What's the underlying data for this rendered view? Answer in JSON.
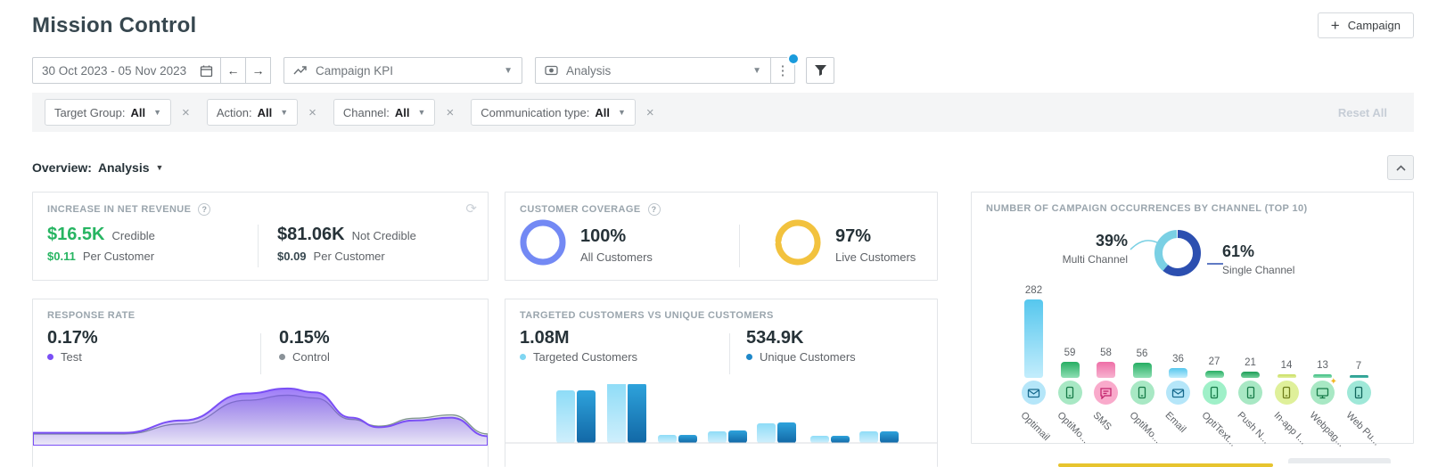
{
  "app": {
    "title": "Mission Control",
    "campaign_button": "Campaign"
  },
  "toolbar": {
    "date_range": "30 Oct 2023 - 05 Nov 2023",
    "kpi_dropdown": "Campaign KPI",
    "view_dropdown": "Analysis"
  },
  "filter_bar": {
    "chips": [
      {
        "label": "Target Group:",
        "value": "All"
      },
      {
        "label": "Action:",
        "value": "All"
      },
      {
        "label": "Channel:",
        "value": "All"
      },
      {
        "label": "Communication type:",
        "value": "All"
      }
    ],
    "reset_all": "Reset All"
  },
  "overview": {
    "label": "Overview:",
    "value": "Analysis"
  },
  "cards": {
    "net_revenue": {
      "title": "INCREASE IN NET REVENUE",
      "accent_color": "#27b562",
      "credible": {
        "amount": "$16.5K",
        "label": "Credible",
        "per_customer_amount": "$0.11",
        "per_customer_label": "Per Customer"
      },
      "not_credible": {
        "amount": "$81.06K",
        "label": "Not Credible",
        "per_customer_amount": "$0.09",
        "per_customer_label": "Per Customer"
      }
    },
    "customer_coverage": {
      "title": "CUSTOMER COVERAGE",
      "all_customers": {
        "percent": "100%",
        "value": 100,
        "label": "All Customers",
        "ring_color": "#7389f4"
      },
      "live_customers": {
        "percent": "97%",
        "value": 97,
        "label": "Live Customers",
        "ring_color": "#f2c23e"
      }
    },
    "response_rate": {
      "title": "RESPONSE RATE",
      "test": {
        "percent": "0.17%",
        "label": "Test",
        "dot_color": "#7a4ff5"
      },
      "control": {
        "percent": "0.15%",
        "label": "Control",
        "dot_color": "#8a9298"
      },
      "chart_data": {
        "type": "area",
        "axes_visible": false,
        "series": [
          {
            "name": "Control",
            "line_color": "#7e948c",
            "fill_color": "#8a96a8",
            "points": [
              [
                0,
                0.16
              ],
              [
                0.2,
                0.16
              ],
              [
                0.33,
                0.34
              ],
              [
                0.47,
                0.76
              ],
              [
                0.56,
                0.85
              ],
              [
                0.62,
                0.8
              ],
              [
                0.7,
                0.42
              ],
              [
                0.76,
                0.3
              ],
              [
                0.84,
                0.44
              ],
              [
                0.92,
                0.5
              ],
              [
                1,
                0.16
              ]
            ]
          },
          {
            "name": "Test",
            "line_color": "#7a4ff5",
            "fill_color": "#7c4ff5",
            "points": [
              [
                0,
                0.18
              ],
              [
                0.2,
                0.18
              ],
              [
                0.33,
                0.4
              ],
              [
                0.47,
                0.88
              ],
              [
                0.56,
                0.97
              ],
              [
                0.62,
                0.9
              ],
              [
                0.7,
                0.45
              ],
              [
                0.76,
                0.28
              ],
              [
                0.84,
                0.4
              ],
              [
                0.92,
                0.45
              ],
              [
                1,
                0.12
              ]
            ]
          }
        ]
      }
    },
    "targeted_vs_unique": {
      "title": "TARGETED CUSTOMERS VS UNIQUE CUSTOMERS",
      "targeted": {
        "value": "1.08M",
        "label": "Targeted Customers",
        "dot_color": "#7fd6f2"
      },
      "unique": {
        "value": "534.9K",
        "label": "Unique Customers",
        "dot_color": "#1f88c9"
      },
      "chart_data": {
        "type": "bar",
        "category_labels_visible": false,
        "series": [
          {
            "name": "Targeted Customers",
            "values_relative": [
              59,
              68,
              9,
              13,
              22,
              8,
              13
            ],
            "color_top": "#8edcf7",
            "color_bottom": "#cfeffc"
          },
          {
            "name": "Unique Customers",
            "values_relative": [
              59,
              67,
              9,
              14,
              23,
              8,
              13
            ],
            "color_top": "#2ea3dc",
            "color_bottom": "#1268a6"
          }
        ]
      }
    },
    "channel_occurrences": {
      "title": "NUMBER OF CAMPAIGN OCCURRENCES BY CHANNEL (TOP 10)",
      "donut": {
        "multi_channel": {
          "percent": "39%",
          "value": 39,
          "label": "Multi Channel",
          "color": "#7ad0e4"
        },
        "single_channel": {
          "percent": "61%",
          "value": 61,
          "label": "Single Channel",
          "color": "#2c4fb0"
        }
      },
      "chart_data": {
        "type": "bar",
        "categories": [
          "Optimail",
          "OptiMo...",
          "SMS",
          "OptiMo...",
          "Email",
          "OptiText...",
          "Push N...",
          "In-app I...",
          "Webpag...",
          "Web Pu..."
        ],
        "values": [
          282,
          59,
          58,
          56,
          36,
          27,
          21,
          14,
          13,
          7
        ],
        "badge_color": "#f2b824",
        "bars": [
          {
            "icon": "envelope",
            "bar_top": "#56c7ee",
            "bar_bottom": "#c3edfc",
            "icon_bg": "#b5e6f9",
            "icon_fg": "#176a8e",
            "badge": false
          },
          {
            "icon": "smartphone",
            "bar_top": "#27ae63",
            "bar_bottom": "#8fdfb4",
            "icon_bg": "#a8e8c4",
            "icon_fg": "#157a47",
            "badge": false
          },
          {
            "icon": "chat",
            "bar_top": "#ee6fa7",
            "bar_bottom": "#f7b3d0",
            "icon_bg": "#f9aacb",
            "icon_fg": "#c2256e",
            "badge": false
          },
          {
            "icon": "smartphone",
            "bar_top": "#27ae63",
            "bar_bottom": "#8fdfb4",
            "icon_bg": "#a8e8c4",
            "icon_fg": "#157a47",
            "badge": false
          },
          {
            "icon": "envelope",
            "bar_top": "#56c7ee",
            "bar_bottom": "#c3edfc",
            "icon_bg": "#b5e6f9",
            "icon_fg": "#176a8e",
            "badge": false
          },
          {
            "icon": "smartphone",
            "bar_top": "#27ae63",
            "bar_bottom": "#8fdfb4",
            "icon_bg": "#9ff0c8",
            "icon_fg": "#157a47",
            "badge": false
          },
          {
            "icon": "smartphone",
            "bar_top": "#1f9e58",
            "bar_bottom": "#6fcf98",
            "icon_bg": "#a8e8c4",
            "icon_fg": "#157a47",
            "badge": false
          },
          {
            "icon": "smartphone",
            "bar_top": "#c8dd5e",
            "bar_bottom": "#e3efa0",
            "icon_bg": "#dff09a",
            "icon_fg": "#6e7d1a",
            "badge": false
          },
          {
            "icon": "monitor",
            "bar_top": "#3dbd80",
            "bar_bottom": "#8fdfb4",
            "icon_bg": "#a8e8c4",
            "icon_fg": "#157a47",
            "badge": true
          },
          {
            "icon": "smartphone",
            "bar_top": "#178f82",
            "bar_bottom": "#54bfb0",
            "icon_bg": "#9fe8d8",
            "icon_fg": "#10655c",
            "badge": false
          }
        ]
      }
    }
  }
}
